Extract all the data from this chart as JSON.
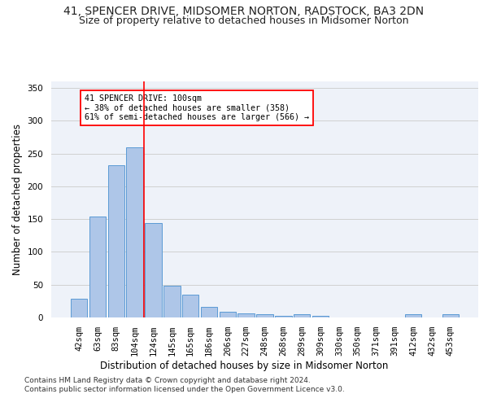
{
  "title": "41, SPENCER DRIVE, MIDSOMER NORTON, RADSTOCK, BA3 2DN",
  "subtitle": "Size of property relative to detached houses in Midsomer Norton",
  "xlabel": "Distribution of detached houses by size in Midsomer Norton",
  "ylabel": "Number of detached properties",
  "categories": [
    "42sqm",
    "63sqm",
    "83sqm",
    "104sqm",
    "124sqm",
    "145sqm",
    "165sqm",
    "186sqm",
    "206sqm",
    "227sqm",
    "248sqm",
    "268sqm",
    "289sqm",
    "309sqm",
    "330sqm",
    "350sqm",
    "371sqm",
    "391sqm",
    "412sqm",
    "432sqm",
    "453sqm"
  ],
  "values": [
    28,
    154,
    232,
    260,
    144,
    48,
    35,
    16,
    9,
    6,
    5,
    3,
    5,
    3,
    0,
    0,
    0,
    0,
    5,
    0,
    5
  ],
  "bar_color": "#aec6e8",
  "bar_edge_color": "#5b9bd5",
  "grid_color": "#d0d0d0",
  "background_color": "#eef2f9",
  "vline_x": 3.5,
  "vline_color": "red",
  "annotation_text": "41 SPENCER DRIVE: 100sqm\n← 38% of detached houses are smaller (358)\n61% of semi-detached houses are larger (566) →",
  "footnote1": "Contains HM Land Registry data © Crown copyright and database right 2024.",
  "footnote2": "Contains public sector information licensed under the Open Government Licence v3.0.",
  "ylim": [
    0,
    360
  ],
  "yticks": [
    0,
    50,
    100,
    150,
    200,
    250,
    300,
    350
  ],
  "title_fontsize": 10,
  "subtitle_fontsize": 9,
  "axis_label_fontsize": 8.5,
  "tick_fontsize": 7.5,
  "footnote_fontsize": 6.5
}
